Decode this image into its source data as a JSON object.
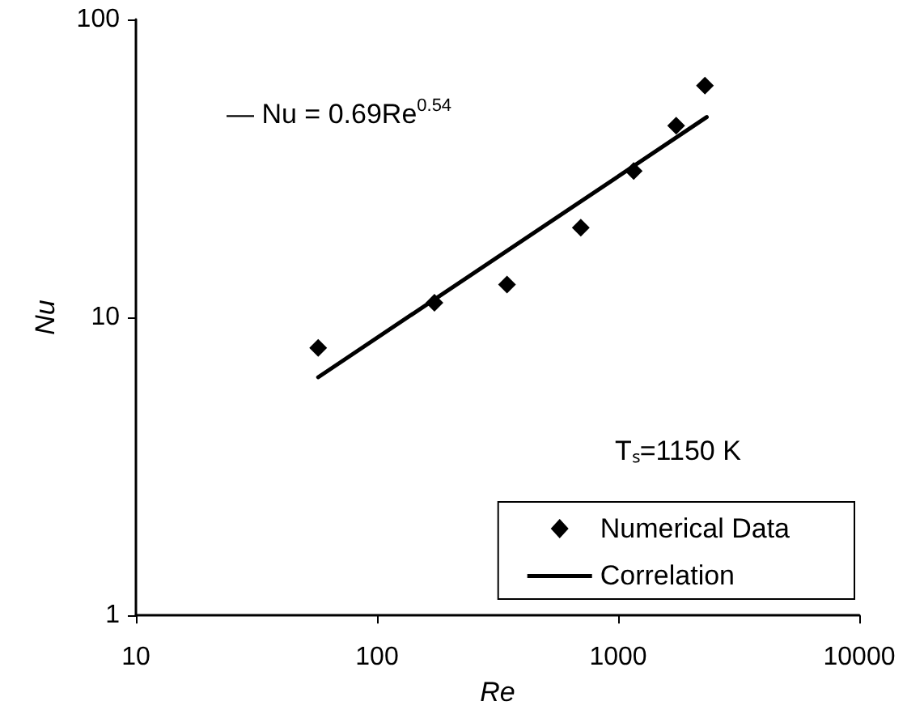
{
  "chart_data": {
    "type": "scatter",
    "xlabel": "Re",
    "ylabel": "Nu",
    "log": "xy",
    "xlim": [
      10,
      10000
    ],
    "xticks": [
      10,
      100,
      1000,
      10000
    ],
    "ylim": [
      1,
      100
    ],
    "yticks": [
      1,
      10,
      100
    ],
    "grid": false,
    "legend": "bottom right",
    "marker": "diamond",
    "annotations": [
      "— Nu = 0.69Re$^{0.54}$",
      "Tₛ=1150 K"
    ],
    "series": [
      {
        "name": "Numerical Data",
        "color": "#000000",
        "x": [
          57,
          173,
          346,
          700,
          1160,
          1740,
          2290
        ],
        "values": [
          7.9,
          11.2,
          12.9,
          20,
          31,
          44,
          60
        ]
      },
      {
        "name": "Correlation",
        "type": "line",
        "color": "#000000",
        "line_style": "solid",
        "marker": "none",
        "x": [
          57,
          2330
        ],
        "values": [
          6.3,
          47
        ]
      }
    ]
  }
}
